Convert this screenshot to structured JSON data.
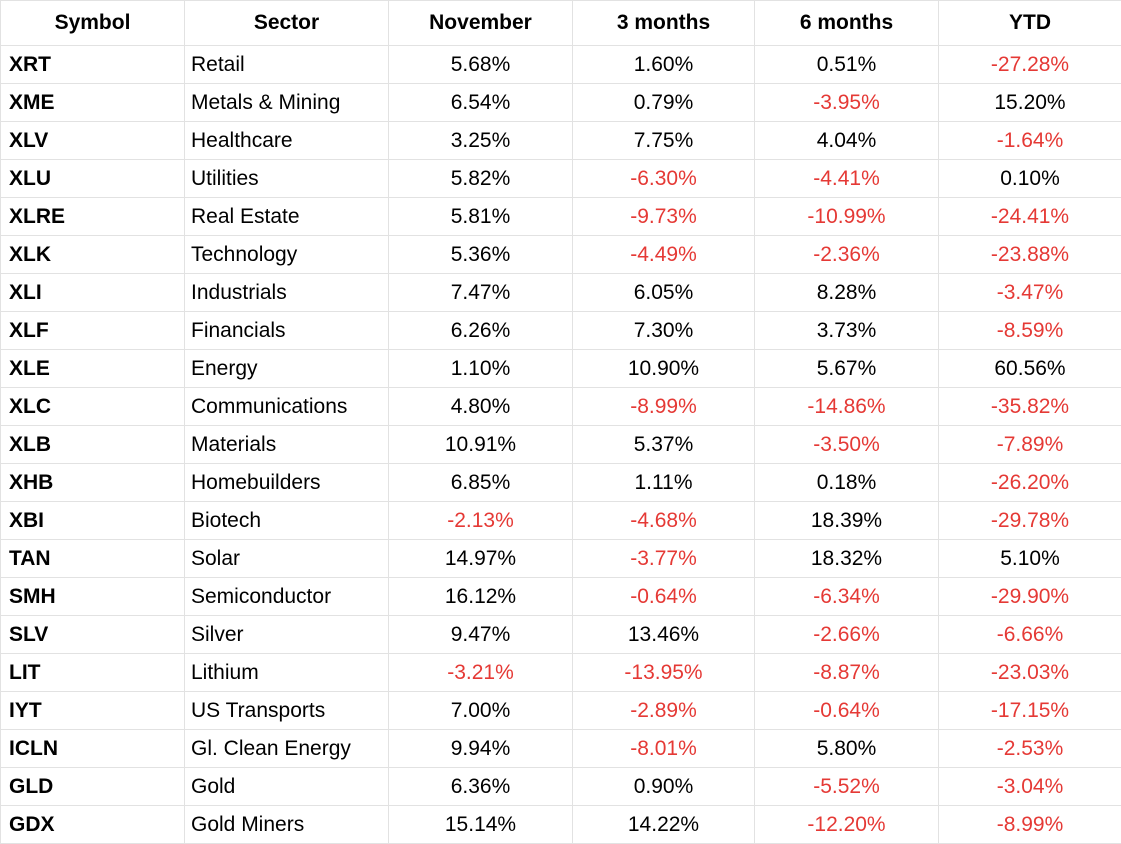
{
  "table": {
    "headers": [
      "Symbol",
      "Sector",
      "November",
      "3 months",
      "6 months",
      "YTD"
    ],
    "rows": [
      [
        "XRT",
        "Retail",
        "5.68%",
        "1.60%",
        "0.51%",
        "-27.28%"
      ],
      [
        "XME",
        "Metals & Mining",
        "6.54%",
        "0.79%",
        "-3.95%",
        "15.20%"
      ],
      [
        "XLV",
        "Healthcare",
        "3.25%",
        "7.75%",
        "4.04%",
        "-1.64%"
      ],
      [
        "XLU",
        "Utilities",
        "5.82%",
        "-6.30%",
        "-4.41%",
        "0.10%"
      ],
      [
        "XLRE",
        "Real Estate",
        "5.81%",
        "-9.73%",
        "-10.99%",
        "-24.41%"
      ],
      [
        "XLK",
        "Technology",
        "5.36%",
        "-4.49%",
        "-2.36%",
        "-23.88%"
      ],
      [
        "XLI",
        "Industrials",
        "7.47%",
        "6.05%",
        "8.28%",
        "-3.47%"
      ],
      [
        "XLF",
        "Financials",
        "6.26%",
        "7.30%",
        "3.73%",
        "-8.59%"
      ],
      [
        "XLE",
        "Energy",
        "1.10%",
        "10.90%",
        "5.67%",
        "60.56%"
      ],
      [
        "XLC",
        "Communications",
        "4.80%",
        "-8.99%",
        "-14.86%",
        "-35.82%"
      ],
      [
        "XLB",
        "Materials",
        "10.91%",
        "5.37%",
        "-3.50%",
        "-7.89%"
      ],
      [
        "XHB",
        "Homebuilders",
        "6.85%",
        "1.11%",
        "0.18%",
        "-26.20%"
      ],
      [
        "XBI",
        "Biotech",
        "-2.13%",
        "-4.68%",
        "18.39%",
        "-29.78%"
      ],
      [
        "TAN",
        "Solar",
        "14.97%",
        "-3.77%",
        "18.32%",
        "5.10%"
      ],
      [
        "SMH",
        "Semiconductor",
        "16.12%",
        "-0.64%",
        "-6.34%",
        "-29.90%"
      ],
      [
        "SLV",
        "Silver",
        "9.47%",
        "13.46%",
        "-2.66%",
        "-6.66%"
      ],
      [
        "LIT",
        "Lithium",
        "-3.21%",
        "-13.95%",
        "-8.87%",
        "-23.03%"
      ],
      [
        "IYT",
        "US Transports",
        "7.00%",
        "-2.89%",
        "-0.64%",
        "-17.15%"
      ],
      [
        "ICLN",
        "Gl. Clean Energy",
        "9.94%",
        "-8.01%",
        "5.80%",
        "-2.53%"
      ],
      [
        "GLD",
        "Gold",
        "6.36%",
        "0.90%",
        "-5.52%",
        "-3.04%"
      ],
      [
        "GDX",
        "Gold Miners",
        "15.14%",
        "14.22%",
        "-12.20%",
        "-8.99%"
      ]
    ]
  },
  "colors": {
    "negative": "#e53935",
    "positive": "#000000",
    "gridline": "#e2e2e2"
  }
}
